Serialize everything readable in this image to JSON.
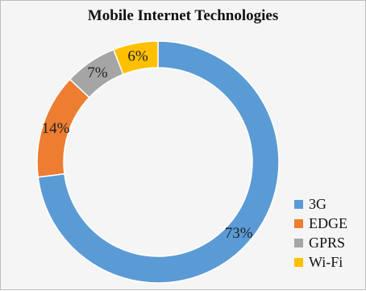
{
  "chart_data": {
    "type": "pie",
    "title": "Mobile Internet Technologies",
    "donut": true,
    "slices": [
      {
        "label": "3G",
        "value": 73,
        "display": "73%",
        "color": "#5b9bd5"
      },
      {
        "label": "EDGE",
        "value": 14,
        "display": "14%",
        "color": "#ed7d31"
      },
      {
        "label": "GPRS",
        "value": 7,
        "display": "7%",
        "color": "#a5a5a5"
      },
      {
        "label": "Wi-Fi",
        "value": 6,
        "display": "6%",
        "color": "#ffc000"
      }
    ],
    "legend_position": "bottom-right"
  }
}
